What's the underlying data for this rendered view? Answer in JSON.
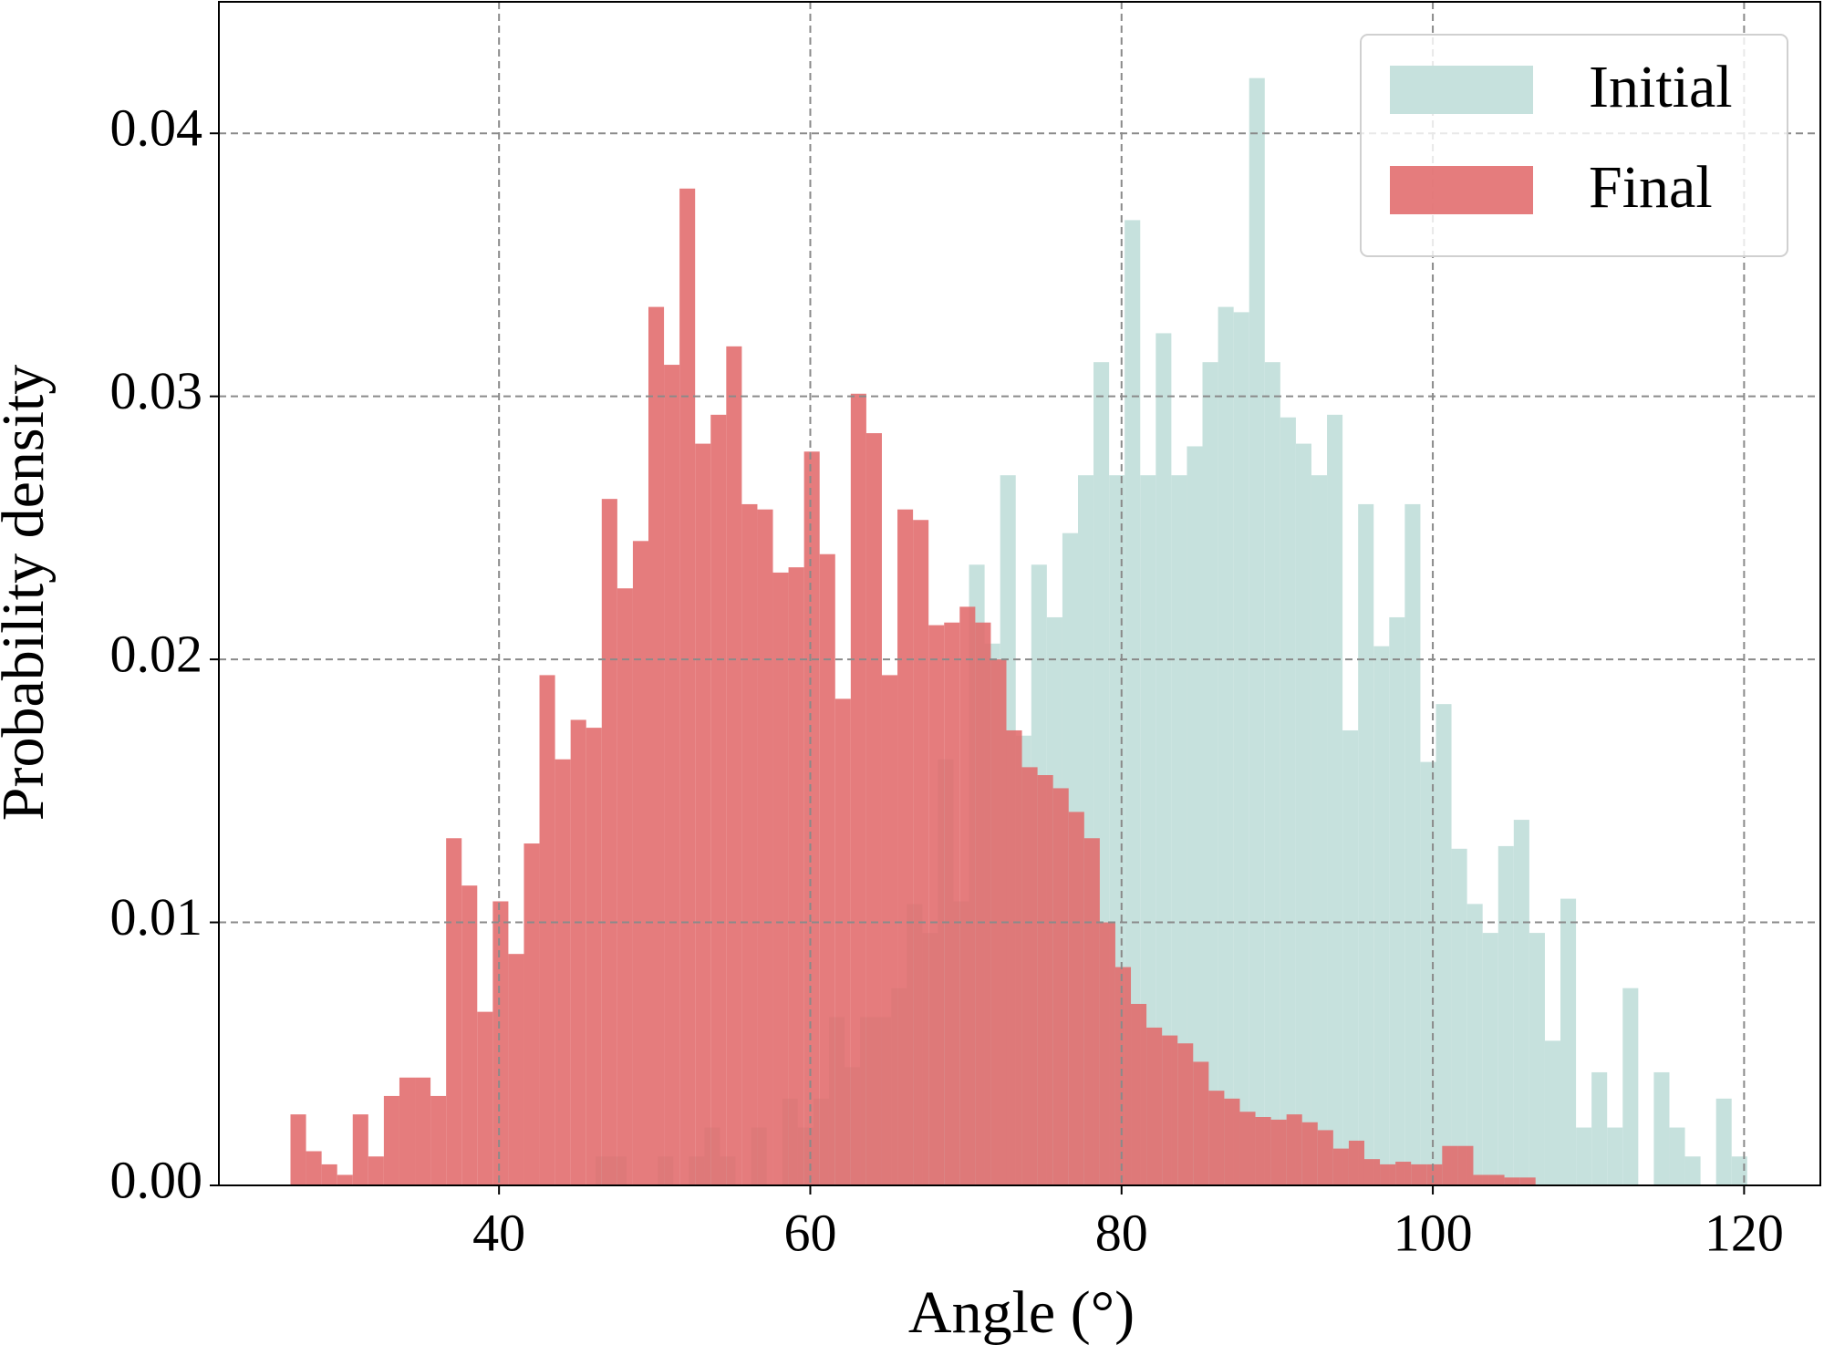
{
  "chart_data": {
    "type": "histogram",
    "xlabel": "Angle (°)",
    "ylabel": "Probability density",
    "xlim": [
      22,
      124.9
    ],
    "ylim": [
      0,
      0.045
    ],
    "xticks": [
      40,
      60,
      80,
      100,
      120
    ],
    "yticks": [
      {
        "value": 0,
        "label": "0.00"
      },
      {
        "value": 0.01,
        "label": "0.01"
      },
      {
        "value": 0.02,
        "label": "0.02"
      },
      {
        "value": 0.03,
        "label": "0.03"
      },
      {
        "value": 0.04,
        "label": "0.04"
      }
    ],
    "grid": true,
    "legend": "upper right",
    "series": [
      {
        "name": "Initial",
        "color": "#c6e1dd",
        "opacity": 1,
        "bins": [
          46.2,
          47.2,
          48.2,
          49.2,
          50.2,
          51.2,
          52.2,
          53.2,
          54.2,
          55.2,
          56.2,
          57.2,
          58.2,
          59.2,
          60.2,
          61.2,
          62.2,
          63.2,
          64.2,
          65.2,
          66.2,
          67.2,
          68.2,
          69.2,
          70.2,
          71.2,
          72.2,
          73.2,
          74.2,
          75.2,
          76.2,
          77.2,
          78.2,
          79.2,
          80.2,
          81.2,
          82.2,
          83.2,
          84.2,
          85.2,
          86.2,
          87.2,
          88.2,
          89.2,
          90.2,
          91.2,
          92.2,
          93.2,
          94.2,
          95.2,
          96.2,
          97.2,
          98.2,
          99.2,
          100.2,
          101.2,
          102.2,
          103.2,
          104.2,
          105.2,
          106.2,
          107.2,
          108.2,
          109.2,
          110.2,
          111.2,
          112.2,
          113.2,
          114.2,
          115.2,
          116.2,
          117.2,
          118.2,
          119.2,
          120.2
        ],
        "values": [
          0.0011,
          0.0011,
          0,
          0,
          0.0011,
          0,
          0.0011,
          0.0022,
          0.0011,
          0,
          0.0022,
          0,
          0.0033,
          0.0022,
          0.0033,
          0.0064,
          0.0045,
          0.0064,
          0.0064,
          0.0075,
          0.0107,
          0.0096,
          0.0162,
          0.0108,
          0.0236,
          0.0206,
          0.027,
          0.0171,
          0.0236,
          0.0216,
          0.0248,
          0.027,
          0.0313,
          0.027,
          0.0367,
          0.027,
          0.0324,
          0.027,
          0.0281,
          0.0313,
          0.0334,
          0.0332,
          0.0421,
          0.0313,
          0.0292,
          0.0282,
          0.027,
          0.0293,
          0.0173,
          0.0259,
          0.0205,
          0.0216,
          0.0259,
          0.0161,
          0.0183,
          0.0128,
          0.0107,
          0.0096,
          0.0129,
          0.0139,
          0.0096,
          0.0055,
          0.0109,
          0.0022,
          0.0043,
          0.0022,
          0.0075,
          0,
          0.0043,
          0.0022,
          0.0011,
          0,
          0.0033,
          0.0011
        ]
      },
      {
        "name": "Final",
        "color": "#e16a6b",
        "opacity": 0.88,
        "bins": [
          26.6,
          27.6,
          28.6,
          29.6,
          30.6,
          31.6,
          32.6,
          33.6,
          34.6,
          35.6,
          36.6,
          37.6,
          38.6,
          39.6,
          40.6,
          41.6,
          42.6,
          43.6,
          44.6,
          45.6,
          46.6,
          47.6,
          48.6,
          49.6,
          50.6,
          51.6,
          52.6,
          53.6,
          54.6,
          55.6,
          56.6,
          57.6,
          58.6,
          59.6,
          60.6,
          61.6,
          62.6,
          63.6,
          64.6,
          65.6,
          66.6,
          67.6,
          68.6,
          69.6,
          70.6,
          71.6,
          72.6,
          73.6,
          74.6,
          75.6,
          76.6,
          77.6,
          78.6,
          79.6,
          80.6,
          81.6,
          82.6,
          83.6,
          84.6,
          85.6,
          86.6,
          87.6,
          88.6,
          89.6,
          90.6,
          91.6,
          92.6,
          93.6,
          94.6,
          95.6,
          96.6,
          97.6,
          98.6,
          99.6,
          100.6,
          101.6,
          102.6,
          103.6,
          104.6,
          105.6,
          106.6
        ],
        "values": [
          0.0027,
          0.0013,
          0.0008,
          0.0004,
          0.0027,
          0.0011,
          0.0034,
          0.0041,
          0.0041,
          0.0034,
          0.0132,
          0.0114,
          0.0066,
          0.0108,
          0.0088,
          0.013,
          0.0194,
          0.0162,
          0.0177,
          0.0174,
          0.0261,
          0.0227,
          0.0245,
          0.0334,
          0.0312,
          0.0379,
          0.0282,
          0.0293,
          0.0319,
          0.0259,
          0.0257,
          0.0233,
          0.0235,
          0.0279,
          0.024,
          0.0185,
          0.0301,
          0.0286,
          0.0194,
          0.0257,
          0.0253,
          0.0213,
          0.0214,
          0.022,
          0.0214,
          0.02,
          0.0173,
          0.0159,
          0.0156,
          0.0151,
          0.0142,
          0.0132,
          0.01,
          0.0083,
          0.0069,
          0.006,
          0.0057,
          0.0054,
          0.0047,
          0.0036,
          0.0033,
          0.0028,
          0.0026,
          0.0025,
          0.0027,
          0.0024,
          0.0021,
          0.0014,
          0.0017,
          0.001,
          0.0008,
          0.0009,
          0.0008,
          0.0008,
          0.0015,
          0.0015,
          0.0004,
          0.0004,
          0.0003,
          0.0003
        ]
      }
    ]
  }
}
